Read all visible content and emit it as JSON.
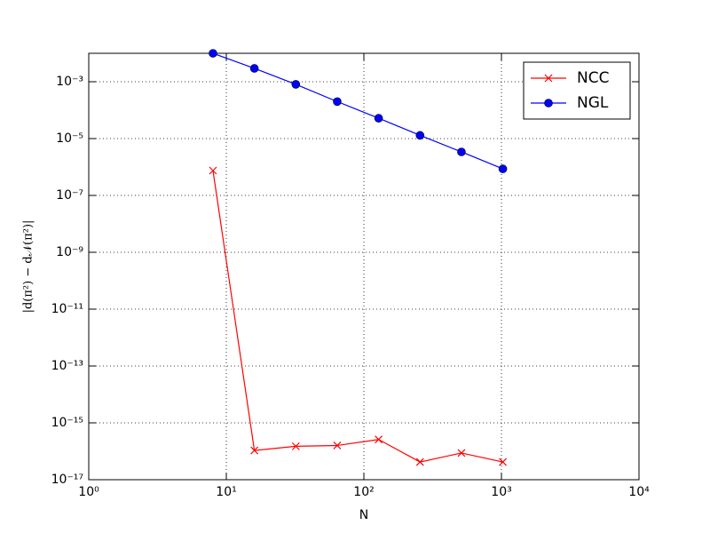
{
  "chart_data": {
    "type": "line",
    "xlabel": "N",
    "ylabel": "|d(π²) − d𝒩(π²)|",
    "x": [
      8,
      16,
      32,
      64,
      128,
      256,
      512,
      1024
    ],
    "series": [
      {
        "name": "NCC",
        "color": "#ff0000",
        "marker": "x",
        "values": [
          7.5e-07,
          1.07e-16,
          1.5e-16,
          1.6e-16,
          2.6e-16,
          4.2e-17,
          8.7e-17,
          4.2e-17
        ]
      },
      {
        "name": "NGL",
        "color": "#0000ff",
        "marker": "o",
        "values": [
          0.01,
          0.00295,
          0.00081,
          0.0002,
          5.2e-05,
          1.3e-05,
          3.4e-06,
          8.6e-07
        ]
      }
    ],
    "xscale": "log",
    "yscale": "log",
    "xlim": [
      1,
      10000
    ],
    "ylim": [
      1e-17,
      0.01
    ],
    "xticks": [
      {
        "value": 1,
        "label": "10⁰"
      },
      {
        "value": 10,
        "label": "10¹"
      },
      {
        "value": 100,
        "label": "10²"
      },
      {
        "value": 1000,
        "label": "10³"
      },
      {
        "value": 10000,
        "label": "10⁴"
      }
    ],
    "yticks": [
      {
        "value": 1e-17,
        "label": "10⁻¹⁷"
      },
      {
        "value": 1e-15,
        "label": "10⁻¹⁵"
      },
      {
        "value": 1e-13,
        "label": "10⁻¹³"
      },
      {
        "value": 1e-11,
        "label": "10⁻¹¹"
      },
      {
        "value": 1e-09,
        "label": "10⁻⁹"
      },
      {
        "value": 1e-07,
        "label": "10⁻⁷"
      },
      {
        "value": 1e-05,
        "label": "10⁻⁵"
      },
      {
        "value": 0.001,
        "label": "10⁻³"
      }
    ],
    "grid": true,
    "legend": "upper right"
  }
}
